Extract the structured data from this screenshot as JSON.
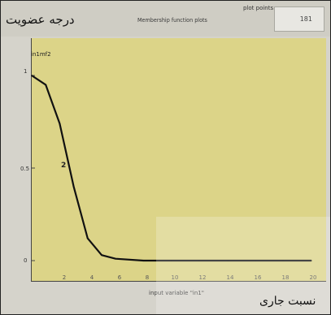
{
  "window": {
    "title": "Membership function plots",
    "persian_title": "درجه عضویت"
  },
  "plot_points": {
    "label": "plot points:",
    "value": "181"
  },
  "membership_function": {
    "name": "in1mf2",
    "index_label": "2"
  },
  "y_ticks": [
    "1",
    "0.5",
    "0"
  ],
  "x_ticks": [
    "2",
    "4",
    "6",
    "8",
    "10",
    "12",
    "14",
    "16",
    "18",
    "20"
  ],
  "x_axis_label": "input variable \"in1\"",
  "persian_current": "نسبت جاری",
  "colors": {
    "plot_background": "#dcd488",
    "curve": "#111111",
    "window_background": "#d5d3cb"
  },
  "chart_data": {
    "type": "line",
    "x": [
      0,
      1,
      2,
      3,
      4,
      5,
      6,
      8,
      10,
      12,
      14,
      16,
      18,
      20
    ],
    "y": [
      1.0,
      0.95,
      0.74,
      0.4,
      0.12,
      0.03,
      0.01,
      0.0,
      0.0,
      0.0,
      0.0,
      0.0,
      0.0,
      0.0
    ],
    "xlabel": "input variable \"in1\"",
    "xlim": [
      0,
      21
    ],
    "ylim": [
      0,
      1
    ]
  }
}
